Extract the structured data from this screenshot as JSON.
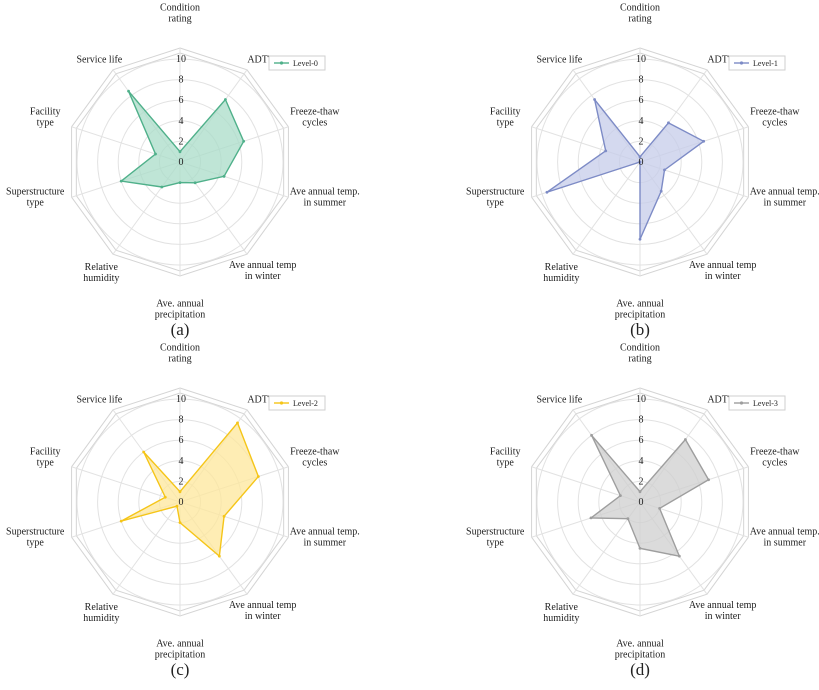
{
  "chart_data": [
    {
      "type": "radar",
      "panel_label": "(a)",
      "categories": [
        "Condition\nrating",
        "ADTT",
        "Freeze-thaw\ncycles",
        "Ave annual temp.\nin summer",
        "Ave annual temp\nin winter",
        "Ave. annual\nprecipitation",
        "Relative\nhumidity",
        "Superstructure\ntype",
        "Facility\ntype",
        "Service life"
      ],
      "rlim": [
        0,
        10
      ],
      "rticks": [
        "0",
        "2",
        "4",
        "6",
        "8",
        "10"
      ],
      "grid": true,
      "legend": "top-right",
      "series": [
        {
          "name": "Level-0",
          "values": [
            1.0,
            7.5,
            6.5,
            4.5,
            2.5,
            2.0,
            3.0,
            6.0,
            2.5,
            8.5
          ],
          "color": "#4fb08a",
          "fill": "#a9dcc8"
        }
      ]
    },
    {
      "type": "radar",
      "panel_label": "(b)",
      "categories": [
        "Condition\nrating",
        "ADTT",
        "Freeze-thaw\ncycles",
        "Ave annual temp.\nin summer",
        "Ave annual temp\nin winter",
        "Ave. annual\nprecipitation",
        "Relative\nhumidity",
        "Superstructure\ntype",
        "Facility\ntype",
        "Service life"
      ],
      "rlim": [
        0,
        10
      ],
      "rticks": [
        "0",
        "2",
        "4",
        "6",
        "8",
        "10"
      ],
      "grid": true,
      "legend": "top-right",
      "series": [
        {
          "name": "Level-1",
          "values": [
            0.5,
            4.7,
            6.5,
            2.5,
            3.5,
            7.5,
            0.0,
            9.5,
            3.5,
            7.5
          ],
          "color": "#7d8bc6",
          "fill": "#c6cce9"
        }
      ]
    },
    {
      "type": "radar",
      "panel_label": "(c)",
      "categories": [
        "Condition\nrating",
        "ADTT",
        "Freeze-thaw\ncycles",
        "Ave annual temp.\nin summer",
        "Ave annual temp\nin winter",
        "Ave. annual\nprecipitation",
        "Relative\nhumidity",
        "Superstructure\ntype",
        "Facility\ntype",
        "Service life"
      ],
      "rlim": [
        0,
        10
      ],
      "rticks": [
        "0",
        "2",
        "4",
        "6",
        "8",
        "10"
      ],
      "grid": true,
      "legend": "top-right",
      "series": [
        {
          "name": "Level-2",
          "values": [
            1.0,
            9.5,
            8.0,
            4.5,
            6.5,
            2.0,
            0.5,
            6.0,
            1.5,
            6.0
          ],
          "color": "#f5c518",
          "fill": "#fde79b"
        }
      ]
    },
    {
      "type": "radar",
      "panel_label": "(d)",
      "categories": [
        "Condition\nrating",
        "ADTT",
        "Freeze-thaw\ncycles",
        "Ave annual temp.\nin summer",
        "Ave annual temp\nin winter",
        "Ave. annual\nprecipitation",
        "Relative\nhumidity",
        "Superstructure\ntype",
        "Facility\ntype",
        "Service life"
      ],
      "rlim": [
        0,
        10
      ],
      "rticks": [
        "0",
        "2",
        "4",
        "6",
        "8",
        "10"
      ],
      "grid": true,
      "legend": "top-right",
      "series": [
        {
          "name": "Level-3",
          "values": [
            1.0,
            7.5,
            7.0,
            2.0,
            6.5,
            4.5,
            2.0,
            5.0,
            2.0,
            8.0
          ],
          "color": "#9e9e9e",
          "fill": "#cfcfcf"
        }
      ]
    }
  ]
}
